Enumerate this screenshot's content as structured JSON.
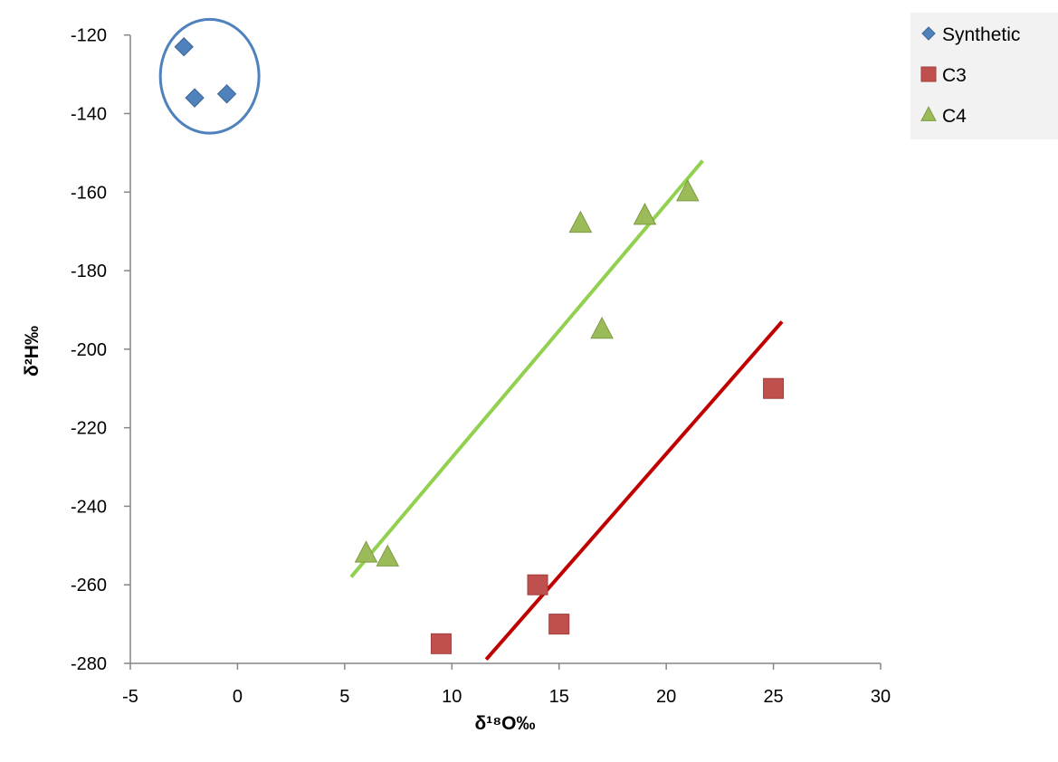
{
  "chart_data": {
    "type": "scatter",
    "title": "",
    "xlabel": "δ¹⁸O‰",
    "ylabel": "δ²H‰",
    "xlim": [
      -5,
      30
    ],
    "ylim": [
      -280,
      -115
    ],
    "xticks": [
      -5,
      0,
      5,
      10,
      15,
      20,
      25,
      30
    ],
    "yticks": [
      -280,
      -260,
      -240,
      -220,
      -200,
      -180,
      -160,
      -140,
      -120
    ],
    "grid": false,
    "legend_position": "top-right",
    "series": [
      {
        "name": "Synthetic",
        "marker": "diamond",
        "color": "#4F81BD",
        "points": [
          [
            -2.5,
            -123
          ],
          [
            -2,
            -136
          ],
          [
            -0.5,
            -135
          ]
        ]
      },
      {
        "name": "C3",
        "marker": "square",
        "color": "#C0504D",
        "points": [
          [
            9.5,
            -275
          ],
          [
            14,
            -260
          ],
          [
            15,
            -270
          ],
          [
            25,
            -210
          ]
        ]
      },
      {
        "name": "C4",
        "marker": "triangle",
        "color": "#9BBB59",
        "points": [
          [
            6,
            -252
          ],
          [
            7,
            -253
          ],
          [
            16,
            -168
          ],
          [
            17,
            -195
          ],
          [
            19,
            -166
          ],
          [
            21,
            -160
          ]
        ]
      }
    ],
    "trendlines": [
      {
        "series": "C4",
        "color": "#92D050",
        "from": [
          5.3,
          -258
        ],
        "to": [
          21.7,
          -152
        ]
      },
      {
        "series": "C3",
        "color": "#C00000",
        "from": [
          11.6,
          -279
        ],
        "to": [
          25.4,
          -193
        ]
      }
    ],
    "annotations": [
      {
        "type": "ellipse",
        "color": "#4F81BD",
        "center": [
          -1.3,
          -130.5
        ],
        "rx_data": 2.3,
        "ry_data": 14.5
      }
    ]
  }
}
